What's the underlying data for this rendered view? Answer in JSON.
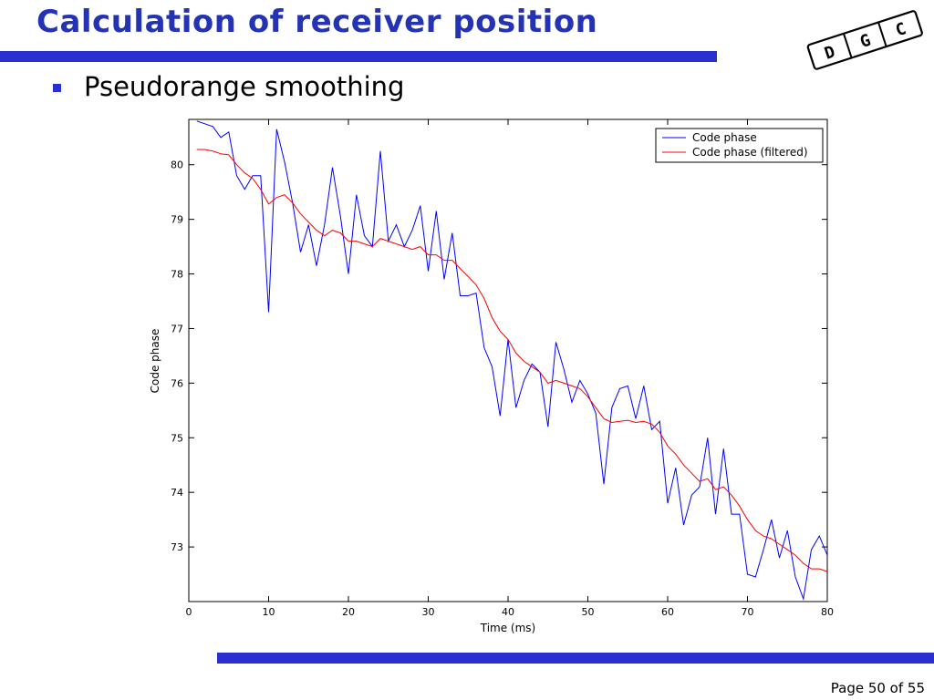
{
  "slide": {
    "title": "Calculation of receiver position",
    "bullet": "Pseudorange smoothing",
    "page": "Page 50 of 55",
    "logo_letters": [
      "D",
      "G",
      "C"
    ]
  },
  "colors": {
    "title": "#2433b4",
    "bar": "#2a2fcf",
    "series_raw": "#0000ff",
    "series_filtered": "#ff0000"
  },
  "chart_data": {
    "type": "line",
    "xlabel": "Time (ms)",
    "ylabel": "Code phase",
    "xlim": [
      0,
      80
    ],
    "ylim": [
      72,
      80.83
    ],
    "xticks": [
      0,
      10,
      20,
      30,
      40,
      50,
      60,
      70,
      80
    ],
    "yticks": [
      73,
      74,
      75,
      76,
      77,
      78,
      79,
      80
    ],
    "grid": false,
    "legend_position": "top-right",
    "series": [
      {
        "name": "Code phase",
        "color": "#0000ff",
        "x": [
          1,
          2,
          3,
          4,
          5,
          6,
          7,
          8,
          9,
          10,
          11,
          12,
          13,
          14,
          15,
          16,
          17,
          18,
          19,
          20,
          21,
          22,
          23,
          24,
          25,
          26,
          27,
          28,
          29,
          30,
          31,
          32,
          33,
          34,
          35,
          36,
          37,
          38,
          39,
          40,
          41,
          42,
          43,
          44,
          45,
          46,
          47,
          48,
          49,
          50,
          51,
          52,
          53,
          54,
          55,
          56,
          57,
          58,
          59,
          60,
          61,
          62,
          63,
          64,
          65,
          66,
          67,
          68,
          69,
          70,
          71,
          72,
          73,
          74,
          75,
          76,
          77,
          78,
          79,
          80
        ],
        "y": [
          80.8,
          80.75,
          80.7,
          80.5,
          80.6,
          79.8,
          79.55,
          79.8,
          79.8,
          77.3,
          80.65,
          80.05,
          79.3,
          78.4,
          78.9,
          78.15,
          78.9,
          79.95,
          79.05,
          78.0,
          79.45,
          78.7,
          78.5,
          80.25,
          78.6,
          78.9,
          78.5,
          78.8,
          79.25,
          78.05,
          79.15,
          77.9,
          78.75,
          77.6,
          77.6,
          77.65,
          76.65,
          76.3,
          75.4,
          76.8,
          75.55,
          76.05,
          76.35,
          76.2,
          75.2,
          76.75,
          76.25,
          75.65,
          76.05,
          75.8,
          75.45,
          74.15,
          75.55,
          75.9,
          75.95,
          75.35,
          75.95,
          75.15,
          75.3,
          73.8,
          74.45,
          73.4,
          73.95,
          74.1,
          75.0,
          73.6,
          74.8,
          73.6,
          73.6,
          72.5,
          72.45,
          72.95,
          73.5,
          72.8,
          73.3,
          72.45,
          72.05,
          72.95,
          73.2,
          72.85
        ]
      },
      {
        "name": "Code phase (filtered)",
        "color": "#ff0000",
        "x": [
          1,
          2,
          3,
          4,
          5,
          6,
          7,
          8,
          9,
          10,
          11,
          12,
          13,
          14,
          15,
          16,
          17,
          18,
          19,
          20,
          21,
          22,
          23,
          24,
          25,
          26,
          27,
          28,
          29,
          30,
          31,
          32,
          33,
          34,
          35,
          36,
          37,
          38,
          39,
          40,
          41,
          42,
          43,
          44,
          45,
          46,
          47,
          48,
          49,
          50,
          51,
          52,
          53,
          54,
          55,
          56,
          57,
          58,
          59,
          60,
          61,
          62,
          63,
          64,
          65,
          66,
          67,
          68,
          69,
          70,
          71,
          72,
          73,
          74,
          75,
          76,
          77,
          78,
          79,
          80
        ],
        "y": [
          80.28,
          80.28,
          80.25,
          80.2,
          80.18,
          80.0,
          79.85,
          79.75,
          79.55,
          79.28,
          79.4,
          79.45,
          79.3,
          79.1,
          78.95,
          78.8,
          78.7,
          78.8,
          78.75,
          78.6,
          78.6,
          78.55,
          78.5,
          78.65,
          78.6,
          78.55,
          78.5,
          78.45,
          78.5,
          78.35,
          78.35,
          78.25,
          78.25,
          78.1,
          77.95,
          77.8,
          77.55,
          77.2,
          76.95,
          76.8,
          76.55,
          76.4,
          76.3,
          76.2,
          76.0,
          76.05,
          76.0,
          75.95,
          75.9,
          75.75,
          75.55,
          75.35,
          75.28,
          75.3,
          75.32,
          75.28,
          75.3,
          75.25,
          75.1,
          74.85,
          74.7,
          74.5,
          74.35,
          74.2,
          74.25,
          74.05,
          74.1,
          73.95,
          73.75,
          73.5,
          73.3,
          73.2,
          73.15,
          73.05,
          72.95,
          72.85,
          72.7,
          72.6,
          72.6,
          72.55
        ]
      }
    ]
  }
}
